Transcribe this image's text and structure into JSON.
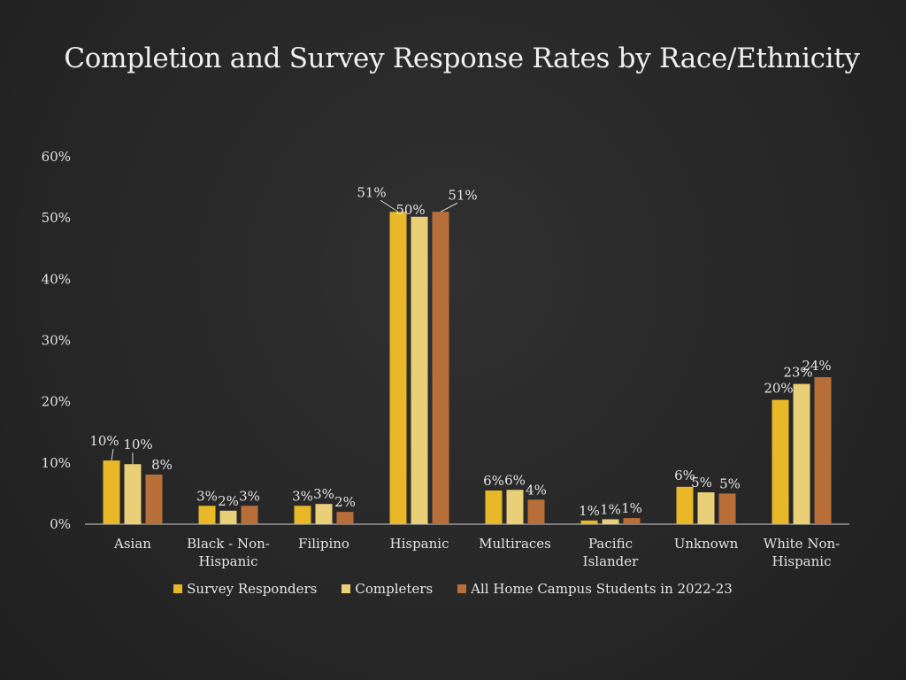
{
  "colors": {
    "survey": "#e8b828",
    "completers": "#e8cf78",
    "all": "#b86e38"
  },
  "chart_data": {
    "type": "bar",
    "title": "Completion and Survey Response Rates by Race/Ethnicity",
    "categories": [
      "Asian",
      "Black - Non-Hispanic",
      "Filipino",
      "Hispanic",
      "Multiraces",
      "Pacific Islander",
      "Unknown",
      "White Non-Hispanic"
    ],
    "category_lines": [
      [
        "Asian"
      ],
      [
        "Black - Non-",
        "Hispanic"
      ],
      [
        "Filipino"
      ],
      [
        "Hispanic"
      ],
      [
        "Multiraces"
      ],
      [
        "Pacific",
        "Islander"
      ],
      [
        "Unknown"
      ],
      [
        "White Non-",
        "Hispanic"
      ]
    ],
    "series": [
      {
        "name": "Survey Responders",
        "values": [
          10.4,
          3.0,
          3.0,
          51.0,
          5.5,
          0.6,
          6.1,
          20.3
        ],
        "labels": [
          "10%",
          "3%",
          "3%",
          "51%",
          "6%",
          "1%",
          "6%",
          "20%"
        ]
      },
      {
        "name": "Completers",
        "values": [
          9.8,
          2.2,
          3.3,
          50.2,
          5.6,
          0.8,
          5.2,
          22.9
        ],
        "labels": [
          "10%",
          "2%",
          "3%",
          "50%",
          "6%",
          "1%",
          "5%",
          "23%"
        ]
      },
      {
        "name": "All Home Campus Students in 2022-23",
        "values": [
          8.1,
          3.0,
          2.0,
          51.0,
          4.0,
          1.0,
          5.0,
          24.0
        ],
        "labels": [
          "8%",
          "3%",
          "2%",
          "51%",
          "4%",
          "1%",
          "5%",
          "24%"
        ]
      }
    ],
    "yticks": [
      "0%",
      "10%",
      "20%",
      "30%",
      "40%",
      "50%",
      "60%"
    ],
    "ylim": [
      0,
      60
    ],
    "xlabel": "",
    "ylabel": "",
    "grid": false,
    "legend": "bottom"
  }
}
